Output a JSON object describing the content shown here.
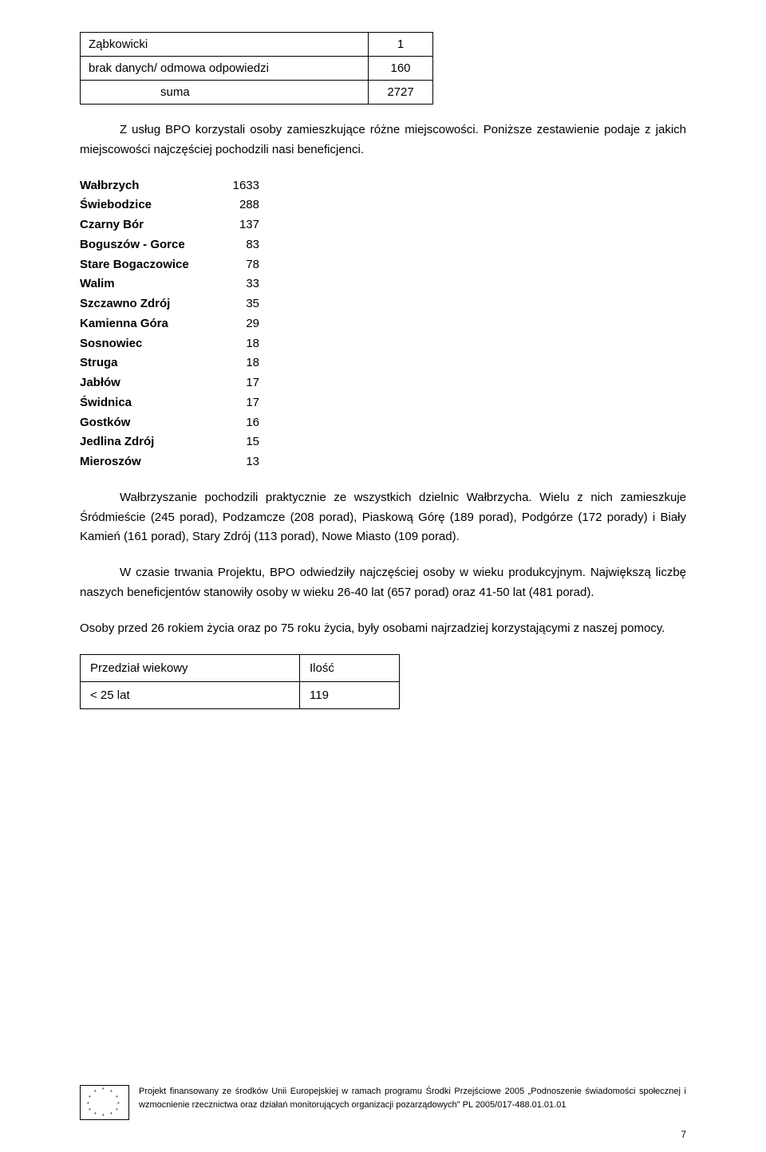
{
  "table1": {
    "rows": [
      {
        "label": "Ząbkowicki",
        "value": "1",
        "indent": false
      },
      {
        "label": "brak danych/ odmowa odpowiedzi",
        "value": "160",
        "indent": false
      },
      {
        "label": "suma",
        "value": "2727",
        "indent": true
      }
    ]
  },
  "intro": "Z usług BPO korzystali osoby zamieszkujące różne miejscowości. Poniższe zestawienie podaje z jakich miejscowości  najczęściej pochodzili nasi beneficjenci.",
  "cities": [
    {
      "name": "Wałbrzych",
      "value": "1633"
    },
    {
      "name": "Świebodzice",
      "value": "288"
    },
    {
      "name": "Czarny Bór",
      "value": "137"
    },
    {
      "name": "Boguszów - Gorce",
      "value": "83"
    },
    {
      "name": "Stare Bogaczowice",
      "value": "78"
    },
    {
      "name": "Walim",
      "value": "33"
    },
    {
      "name": "Szczawno Zdrój",
      "value": "35"
    },
    {
      "name": "Kamienna Góra",
      "value": "29"
    },
    {
      "name": "Sosnowiec",
      "value": "18"
    },
    {
      "name": "Struga",
      "value": "18"
    },
    {
      "name": "Jabłów",
      "value": "17"
    },
    {
      "name": "Świdnica",
      "value": "17"
    },
    {
      "name": "Gostków",
      "value": "16"
    },
    {
      "name": "Jedlina Zdrój",
      "value": "15"
    },
    {
      "name": "Mieroszów",
      "value": "13"
    }
  ],
  "para1": "Wałbrzyszanie pochodzili praktycznie ze wszystkich dzielnic Wałbrzycha. Wielu z nich zamieszkuje Śródmieście (245 porad), Podzamcze (208 porad), Piaskową Górę (189 porad), Podgórze (172 porady) i Biały Kamień (161 porad), Stary Zdrój (113 porad), Nowe Miasto (109 porad).",
  "para2": "W czasie trwania Projektu, BPO odwiedziły najczęściej osoby w wieku produkcyjnym. Największą liczbę naszych beneficjentów stanowiły osoby w wieku 26-40 lat (657 porad) oraz 41-50 lat (481 porad).",
  "para3": "Osoby przed 26 rokiem życia oraz po 75 roku życia, były osobami najrzadziej korzystającymi z naszej pomocy.",
  "age_table": {
    "header": {
      "label": "Przedział wiekowy",
      "value": "Ilość"
    },
    "rows": [
      {
        "label": "< 25 lat",
        "value": "119"
      }
    ]
  },
  "footer": "Projekt finansowany ze środków Unii Europejskiej w ramach programu Środki Przejściowe 2005 „Podnoszenie świadomości społecznej i wzmocnienie rzecznictwa oraz działań monitorujących organizacji pozarządowych\" PL 2005/017-488.01.01.01",
  "page_number": "7"
}
